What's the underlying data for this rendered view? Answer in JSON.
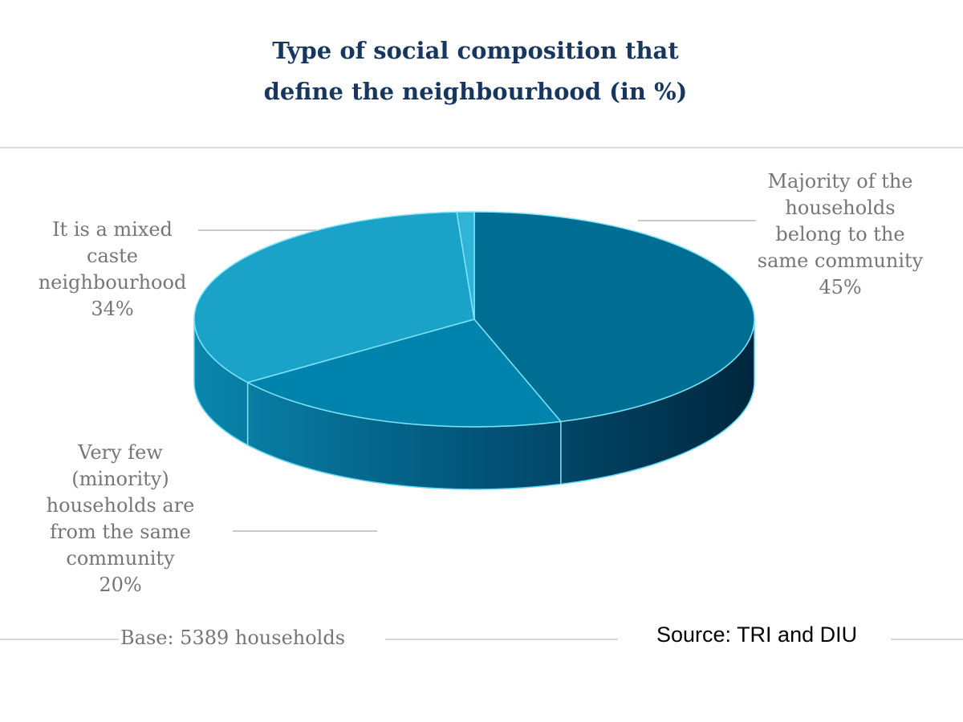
{
  "chart_data": {
    "type": "pie",
    "title": [
      "Type of social composition that",
      "define the neighbourhood (in %)"
    ],
    "slices": [
      {
        "label": [
          "Majority of the",
          "households",
          "belong to the",
          "same community"
        ],
        "value": 45,
        "value_label": "45%",
        "color": "#006e93"
      },
      {
        "label": [
          "Very few",
          "(minority)",
          "households are",
          "from the same",
          "community"
        ],
        "value": 20,
        "value_label": "20%",
        "color": "#0083ad"
      },
      {
        "label": [
          "It is a mixed",
          "caste",
          "neighbourhood"
        ],
        "value": 34,
        "value_label": "34%",
        "color": "#1aa2c8"
      },
      {
        "label": [],
        "value": 1,
        "value_label": "",
        "color": "#2fb4d8"
      }
    ],
    "base_note": "Base: 5389 households",
    "source": "Source: TRI and DIU"
  }
}
